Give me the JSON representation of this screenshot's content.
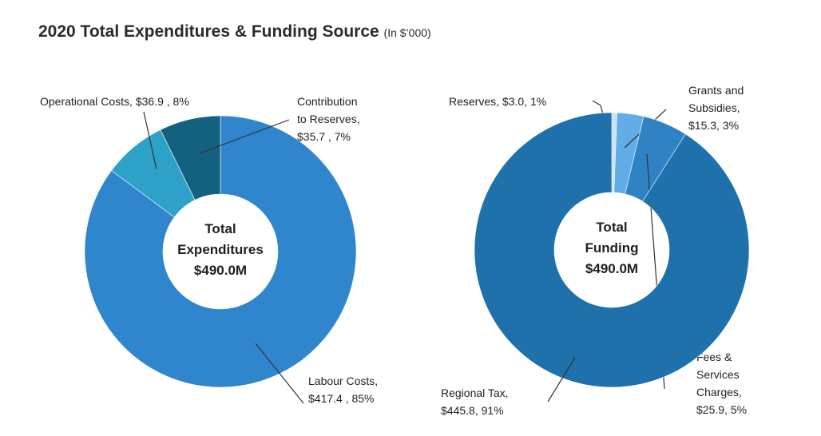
{
  "header": {
    "title": "2020 Total Expenditures & Funding Source",
    "unit": "(In $’000)"
  },
  "chart_data": [
    {
      "type": "pie",
      "variant": "donut",
      "center_label": [
        "Total",
        "Expenditures",
        "$490.0M"
      ],
      "slices": [
        {
          "name": "Labour Costs",
          "value": 417.4,
          "percent": 85,
          "label": [
            "Labour Costs,",
            "$417.4 , 85%"
          ],
          "color": "#2f86cd"
        },
        {
          "name": "Operational Costs",
          "value": 36.9,
          "percent": 8,
          "label": [
            "Operational Costs,  $36.9 , 8%"
          ],
          "color": "#2ea1c9"
        },
        {
          "name": "Contribution to Reserves",
          "value": 35.7,
          "percent": 7,
          "label": [
            "Contribution",
            "to Reserves,",
            "$35.7 , 7%"
          ],
          "color": "#14607f"
        }
      ]
    },
    {
      "type": "pie",
      "variant": "donut",
      "center_label": [
        "Total",
        "Funding",
        "$490.0M"
      ],
      "slices": [
        {
          "name": "Reserves",
          "value": 3.0,
          "percent": 1,
          "label": [
            "Reserves, $3.0, 1%"
          ],
          "color": "#c9e2f6"
        },
        {
          "name": "Grants and Subsidies",
          "value": 15.3,
          "percent": 3,
          "label": [
            "Grants and",
            "Subsidies,",
            "$15.3, 3%"
          ],
          "color": "#62ace8"
        },
        {
          "name": "Fees & Services Charges",
          "value": 25.9,
          "percent": 5,
          "label": [
            "Fees &",
            "Services",
            "Charges,",
            "$25.9, 5%"
          ],
          "color": "#2f83c5"
        },
        {
          "name": "Regional Tax",
          "value": 445.8,
          "percent": 91,
          "label": [
            "Regional Tax,",
            "$445.8, 91%"
          ],
          "color": "#1e71aa"
        }
      ]
    }
  ]
}
